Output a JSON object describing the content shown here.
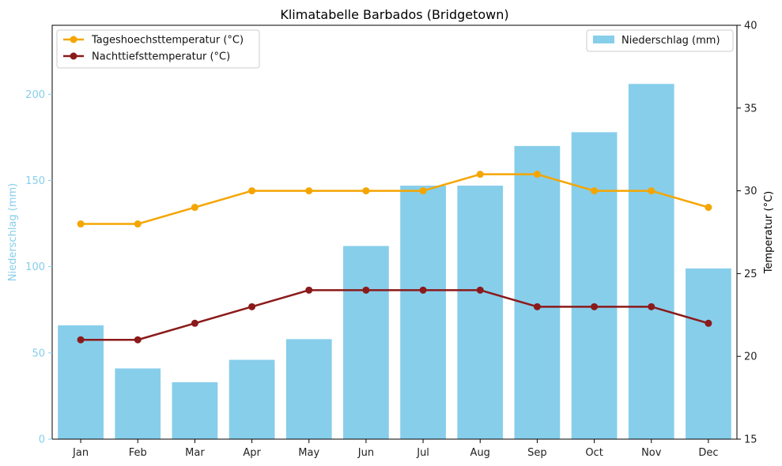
{
  "chart_data": {
    "type": "bar",
    "title": "Klimatabelle Barbados (Bridgetown)",
    "categories": [
      "Jan",
      "Feb",
      "Mar",
      "Apr",
      "May",
      "Jun",
      "Jul",
      "Aug",
      "Sep",
      "Oct",
      "Nov",
      "Dec"
    ],
    "left_axis": {
      "label": "Niederschlag (mm)",
      "ylim": [
        0,
        240
      ],
      "ticks": [
        0,
        50,
        100,
        150,
        200
      ],
      "color": "#87ceeb"
    },
    "right_axis": {
      "label": "Temperatur (°C)",
      "ylim": [
        15,
        40
      ],
      "ticks": [
        15,
        20,
        25,
        30,
        35,
        40
      ],
      "color": "#000000"
    },
    "bars": {
      "name": "Niederschlag (mm)",
      "values": [
        66,
        41,
        33,
        46,
        58,
        112,
        147,
        147,
        170,
        178,
        206,
        99
      ],
      "color": "#87ceeb",
      "axis": "left"
    },
    "series": [
      {
        "name": "Tageshoechsttemperatur (°C)",
        "values": [
          28,
          28,
          29,
          30,
          30,
          30,
          30,
          31,
          31,
          30,
          30,
          29
        ],
        "color": "#f5a500",
        "type": "line",
        "axis": "right"
      },
      {
        "name": "Nachttiefsttemperatur (°C)",
        "values": [
          21,
          21,
          22,
          23,
          24,
          24,
          24,
          24,
          23,
          23,
          23,
          22
        ],
        "color": "#8b1a1a",
        "type": "line",
        "axis": "right"
      }
    ],
    "legend_lines_placement": "top-left",
    "legend_bars_placement": "top-right",
    "grid": false
  }
}
